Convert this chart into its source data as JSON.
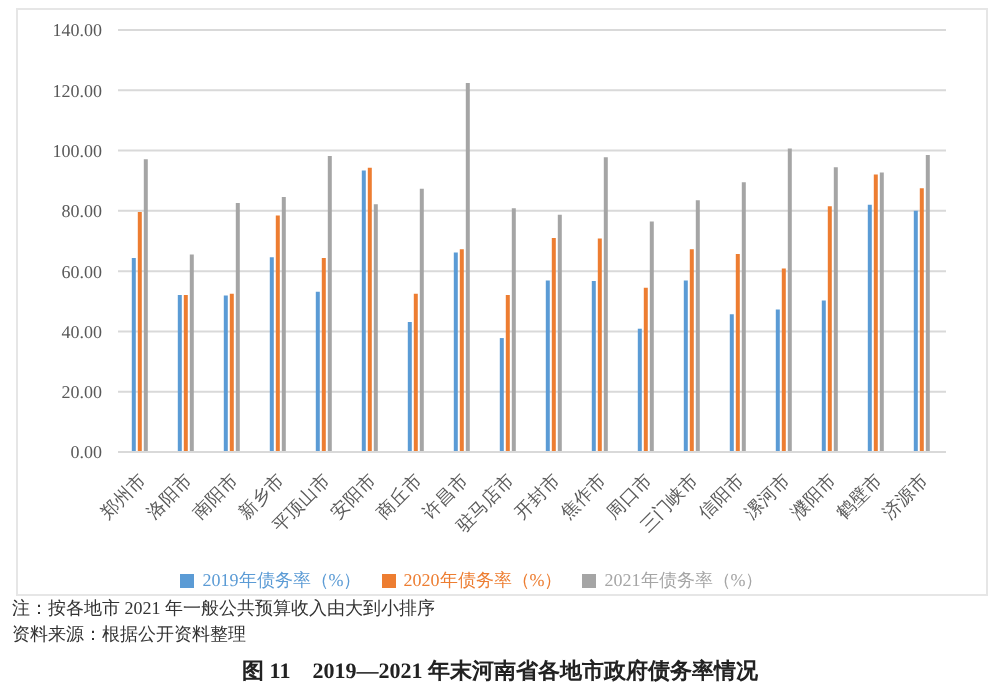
{
  "chart_data": {
    "type": "bar",
    "title": "图 11　2019—2021 年末河南省各地市政府债务率情况",
    "annotations": [
      "注：按各地市 2021 年一般公共预算收入由大到小排序",
      "资料来源：根据公开资料整理"
    ],
    "categories": [
      "郑州市",
      "洛阳市",
      "南阳市",
      "新乡市",
      "平顶山市",
      "安阳市",
      "商丘市",
      "许昌市",
      "驻马店市",
      "开封市",
      "焦作市",
      "周口市",
      "三门峡市",
      "信阳市",
      "漯河市",
      "濮阳市",
      "鹤壁市",
      "济源市"
    ],
    "series": [
      {
        "name": "2019年债务率（%）",
        "color": "#5b9bd5",
        "values": [
          64.4,
          52.1,
          51.9,
          64.6,
          53.2,
          93.4,
          43.1,
          66.2,
          37.8,
          56.9,
          56.7,
          40.9,
          56.9,
          45.7,
          47.3,
          50.3,
          82.0,
          80.0
        ]
      },
      {
        "name": "2020年债务率（%）",
        "color": "#ed7d31",
        "values": [
          79.6,
          52.1,
          52.5,
          78.5,
          64.4,
          94.3,
          52.5,
          67.3,
          52.1,
          71.0,
          70.8,
          54.5,
          67.3,
          65.7,
          60.9,
          81.5,
          92.1,
          87.5
        ]
      },
      {
        "name": "2021年债务率（%）",
        "color": "#a5a5a5",
        "values": [
          97.1,
          65.5,
          82.6,
          84.6,
          98.2,
          82.2,
          87.3,
          122.4,
          80.9,
          78.7,
          97.8,
          76.5,
          83.5,
          89.5,
          100.7,
          94.5,
          92.7,
          98.5
        ]
      }
    ],
    "ylim": [
      0,
      140
    ],
    "yticks": [
      {
        "value": 0,
        "label": "0.00"
      },
      {
        "value": 20,
        "label": "20.00"
      },
      {
        "value": 40,
        "label": "40.00"
      },
      {
        "value": 60,
        "label": "60.00"
      },
      {
        "value": 80,
        "label": "80.00"
      },
      {
        "value": 100,
        "label": "100.00"
      },
      {
        "value": 120,
        "label": "120.00"
      },
      {
        "value": 140,
        "label": "140.00"
      }
    ],
    "grid": "y",
    "legend": "bottom"
  }
}
